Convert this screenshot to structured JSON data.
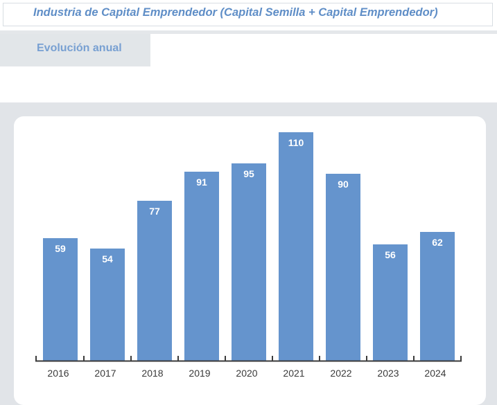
{
  "header": {
    "title": "Industria de Capital Emprendedor (Capital Semilla + Capital Emprendedor)"
  },
  "tabs": [
    {
      "label": "Evolución anual",
      "active": true
    }
  ],
  "colors": {
    "bar": "#6594cd",
    "title": "#5f8ec7",
    "tab_label": "#78a0d2",
    "axis": "#3a3a3a"
  },
  "chart_data": {
    "type": "bar",
    "title": "",
    "xlabel": "",
    "ylabel": "",
    "categories": [
      "2016",
      "2017",
      "2018",
      "2019",
      "2020",
      "2021",
      "2022",
      "2023",
      "2024"
    ],
    "values": [
      59,
      54,
      77,
      91,
      95,
      110,
      90,
      56,
      62
    ],
    "ylim": [
      0,
      110
    ],
    "grid": false,
    "data_labels": true
  }
}
